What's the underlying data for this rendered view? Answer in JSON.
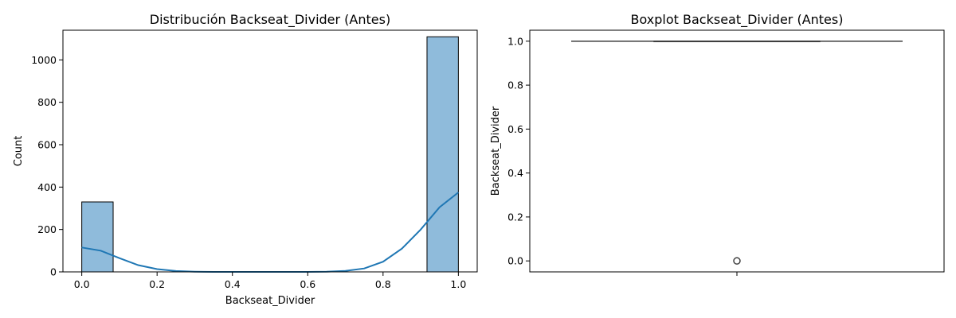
{
  "chart_data": [
    {
      "type": "bar",
      "subtype": "histogram-with-kde",
      "title": "Distribución Backseat_Divider (Antes)",
      "xlabel": "Backseat_Divider",
      "ylabel": "Count",
      "xlim": [
        -0.05,
        1.05
      ],
      "ylim": [
        0,
        1140
      ],
      "xticks": [
        "0.0",
        "0.2",
        "0.4",
        "0.6",
        "0.8",
        "1.0"
      ],
      "yticks": [
        "0",
        "200",
        "400",
        "600",
        "800",
        "1000"
      ],
      "bins": [
        {
          "x0": 0.0,
          "x1": 0.0833,
          "count": 330
        },
        {
          "x0": 0.9167,
          "x1": 1.0,
          "count": 1109
        }
      ],
      "series": [
        {
          "name": "",
          "type": "line",
          "x": [
            0.0,
            0.05,
            0.1,
            0.15,
            0.2,
            0.25,
            0.3,
            0.35,
            0.4,
            0.5,
            0.6,
            0.65,
            0.7,
            0.75,
            0.8,
            0.85,
            0.9,
            0.95,
            1.0
          ],
          "y": [
            115,
            100,
            65,
            32,
            13,
            4,
            1,
            0,
            0,
            0,
            0,
            1,
            5,
            16,
            48,
            110,
            200,
            305,
            375
          ]
        }
      ],
      "bar_color": "#8fbbdb",
      "line_color": "#1f77b4",
      "grid": false
    },
    {
      "type": "boxplot",
      "title": "Boxplot Backseat_Divider (Antes)",
      "xlabel": "",
      "ylabel": "Backseat_Divider",
      "ylim": [
        -0.05,
        1.05
      ],
      "yticks": [
        "0.0",
        "0.2",
        "0.4",
        "0.6",
        "0.8",
        "1.0"
      ],
      "box": {
        "q1": 1.0,
        "median": 1.0,
        "q3": 1.0,
        "whisker_low": 1.0,
        "whisker_high": 1.0
      },
      "outliers": [
        0.0
      ],
      "box_color": "#1f77b4",
      "grid": false
    }
  ]
}
